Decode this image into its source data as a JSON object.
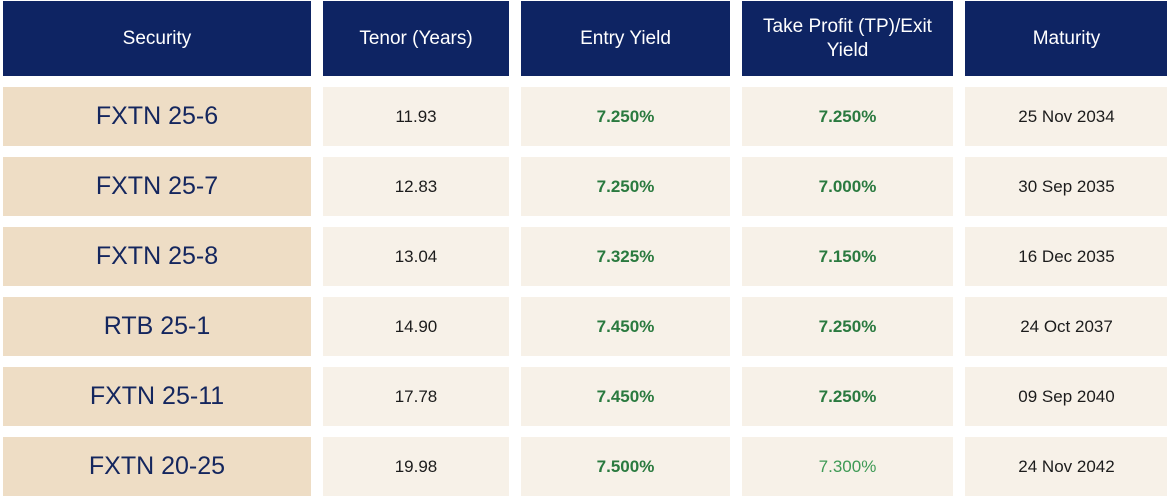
{
  "table": {
    "headers": [
      "Security",
      "Tenor (Years)",
      "Entry Yield",
      "Take Profit (TP)/Exit Yield",
      "Maturity"
    ],
    "rows": [
      {
        "security": "FXTN 25-6",
        "tenor": "11.93",
        "entry_yield": "7.250%",
        "tp_yield": "7.250%",
        "maturity": "25 Nov 2034"
      },
      {
        "security": "FXTN 25-7",
        "tenor": "12.83",
        "entry_yield": "7.250%",
        "tp_yield": "7.000%",
        "maturity": "30 Sep 2035"
      },
      {
        "security": "FXTN 25-8",
        "tenor": "13.04",
        "entry_yield": "7.325%",
        "tp_yield": "7.150%",
        "maturity": "16 Dec 2035"
      },
      {
        "security": "RTB 25-1",
        "tenor": "14.90",
        "entry_yield": "7.450%",
        "tp_yield": "7.250%",
        "maturity": "24 Oct 2037"
      },
      {
        "security": "FXTN 25-11",
        "tenor": "17.78",
        "entry_yield": "7.450%",
        "tp_yield": "7.250%",
        "maturity": "09 Sep 2040"
      },
      {
        "security": "FXTN 20-25",
        "tenor": "19.98",
        "entry_yield": "7.500%",
        "tp_yield": "7.300%",
        "maturity": "24 Nov 2042"
      }
    ]
  },
  "colors": {
    "header_bg": "#0e2463",
    "security_bg": "#eeddc5",
    "cell_bg": "#f7f1e8",
    "yield_green": "#2a7a3f"
  }
}
